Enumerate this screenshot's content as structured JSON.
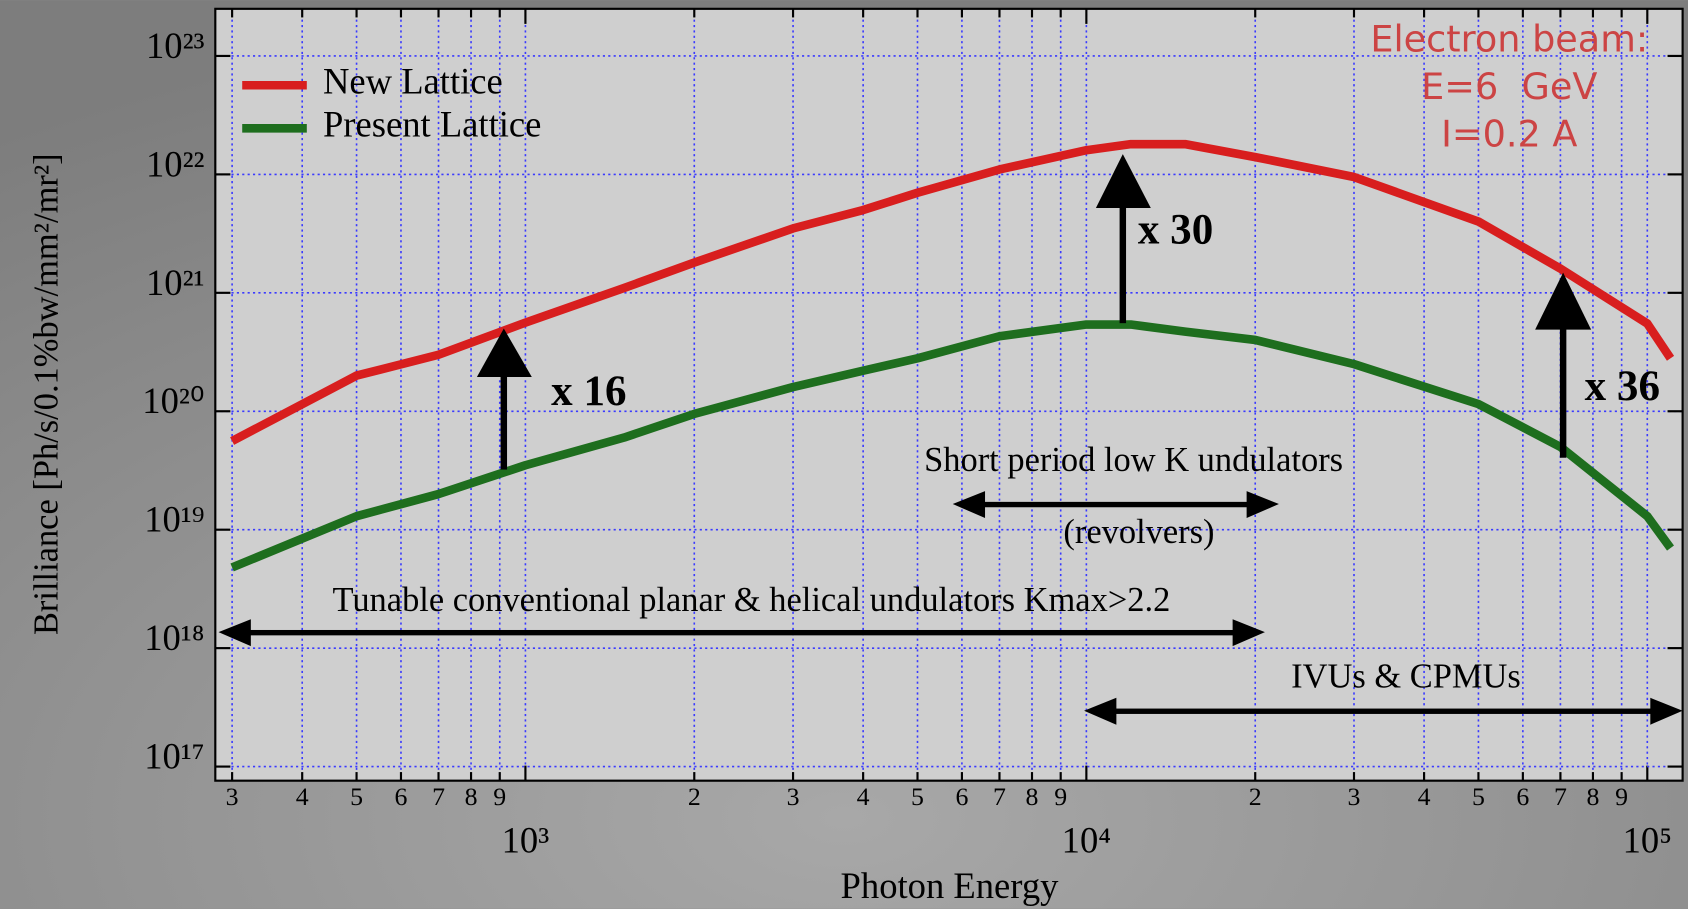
{
  "chart_data": {
    "type": "line",
    "x_label": "Photon Energy",
    "y_label": "Brilliance [Ph/s/0.1%bw/mm²/mr²]",
    "x_log": true,
    "y_log": true,
    "grid": true,
    "legend": "upper left",
    "xlim": [
      280,
      115600
    ],
    "ylim": [
      7.6e+16,
      2.5e+23
    ],
    "xticks": [
      {
        "value": 300,
        "label": "3"
      },
      {
        "value": 400,
        "label": "4"
      },
      {
        "value": 500,
        "label": "5"
      },
      {
        "value": 600,
        "label": "6"
      },
      {
        "value": 700,
        "label": "7"
      },
      {
        "value": 800,
        "label": "8"
      },
      {
        "value": 900,
        "label": "9"
      },
      {
        "value": 1000,
        "label": "10³"
      },
      {
        "value": 2000,
        "label": "2"
      },
      {
        "value": 3000,
        "label": "3"
      },
      {
        "value": 4000,
        "label": "4"
      },
      {
        "value": 5000,
        "label": "5"
      },
      {
        "value": 6000,
        "label": "6"
      },
      {
        "value": 7000,
        "label": "7"
      },
      {
        "value": 8000,
        "label": "8"
      },
      {
        "value": 9000,
        "label": "9"
      },
      {
        "value": 10000,
        "label": "10⁴"
      },
      {
        "value": 20000,
        "label": "2"
      },
      {
        "value": 30000,
        "label": "3"
      },
      {
        "value": 40000,
        "label": "4"
      },
      {
        "value": 50000,
        "label": "5"
      },
      {
        "value": 60000,
        "label": "6"
      },
      {
        "value": 70000,
        "label": "7"
      },
      {
        "value": 80000,
        "label": "8"
      },
      {
        "value": 90000,
        "label": "9"
      },
      {
        "value": 100000,
        "label": "10⁵"
      }
    ],
    "yticks": [
      {
        "value": 1e+17,
        "label": "10¹⁷"
      },
      {
        "value": 1e+18,
        "label": "10¹⁸"
      },
      {
        "value": 1e+19,
        "label": "10¹⁹"
      },
      {
        "value": 1e+20,
        "label": "10²⁰"
      },
      {
        "value": 1e+21,
        "label": "10²¹"
      },
      {
        "value": 1e+22,
        "label": "10²²"
      },
      {
        "value": 1e+23,
        "label": "10²³"
      }
    ],
    "x": [
      300,
      500,
      700,
      1000,
      1500,
      2000,
      3000,
      4000,
      5000,
      7000,
      10000,
      12000,
      15000,
      20000,
      30000,
      50000,
      70000,
      100000,
      110000
    ],
    "series": [
      {
        "name": "New Lattice",
        "color": "#d81e1e",
        "values": [
          5.6e+19,
          2e+20,
          3e+20,
          5.6e+20,
          1.1e+21,
          1.8e+21,
          3.5e+21,
          5e+21,
          7e+21,
          1.1e+22,
          1.6e+22,
          1.8e+22,
          1.8e+22,
          1.4e+22,
          9.5e+21,
          4e+21,
          1.6e+21,
          5.5e+20,
          2.8e+20
        ]
      },
      {
        "name": "Present Lattice",
        "color": "#1e6e1e",
        "values": [
          4.8e+18,
          1.3e+19,
          2e+19,
          3.5e+19,
          6e+19,
          9.5e+19,
          1.6e+20,
          2.2e+20,
          2.8e+20,
          4.3e+20,
          5.4e+20,
          5.4e+20,
          4.7e+20,
          4e+20,
          2.5e+20,
          1.15e+20,
          5e+19,
          1.3e+19,
          7e+18
        ]
      }
    ],
    "annotations": [
      "x 16",
      "x 30",
      "x 36",
      "Short period low K undulators",
      "(revolvers)",
      "Tunable conventional planar & helical undulators Kmax>2.2",
      "IVUs & CPMUs"
    ],
    "beam_info": [
      "Electron beam:",
      "E=6  GeV",
      "I=0.2 A"
    ]
  }
}
